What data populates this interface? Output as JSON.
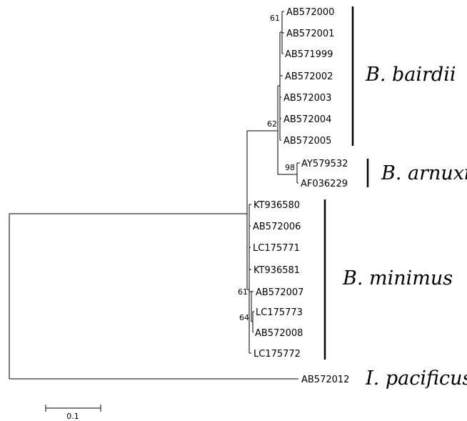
{
  "taxa": [
    "AB572000",
    "AB572001",
    "AB571999",
    "AB572002",
    "AB572003",
    "AB572004",
    "AB572005",
    "AY579532",
    "AF036229",
    "KT936580",
    "AB572006",
    "LC175771",
    "KT936581",
    "AB572007",
    "LC175773",
    "AB572008",
    "LC175772",
    "AB572012"
  ],
  "support_values": [
    "61",
    "62",
    "98",
    "61",
    "64"
  ],
  "clades": [
    {
      "label": "B. bairdii"
    },
    {
      "label": "B. arnuxii"
    },
    {
      "label": "B. minimus"
    },
    {
      "label": "I. pacificus"
    }
  ],
  "scale_bar": {
    "label": "0.1",
    "value": 0.1
  }
}
